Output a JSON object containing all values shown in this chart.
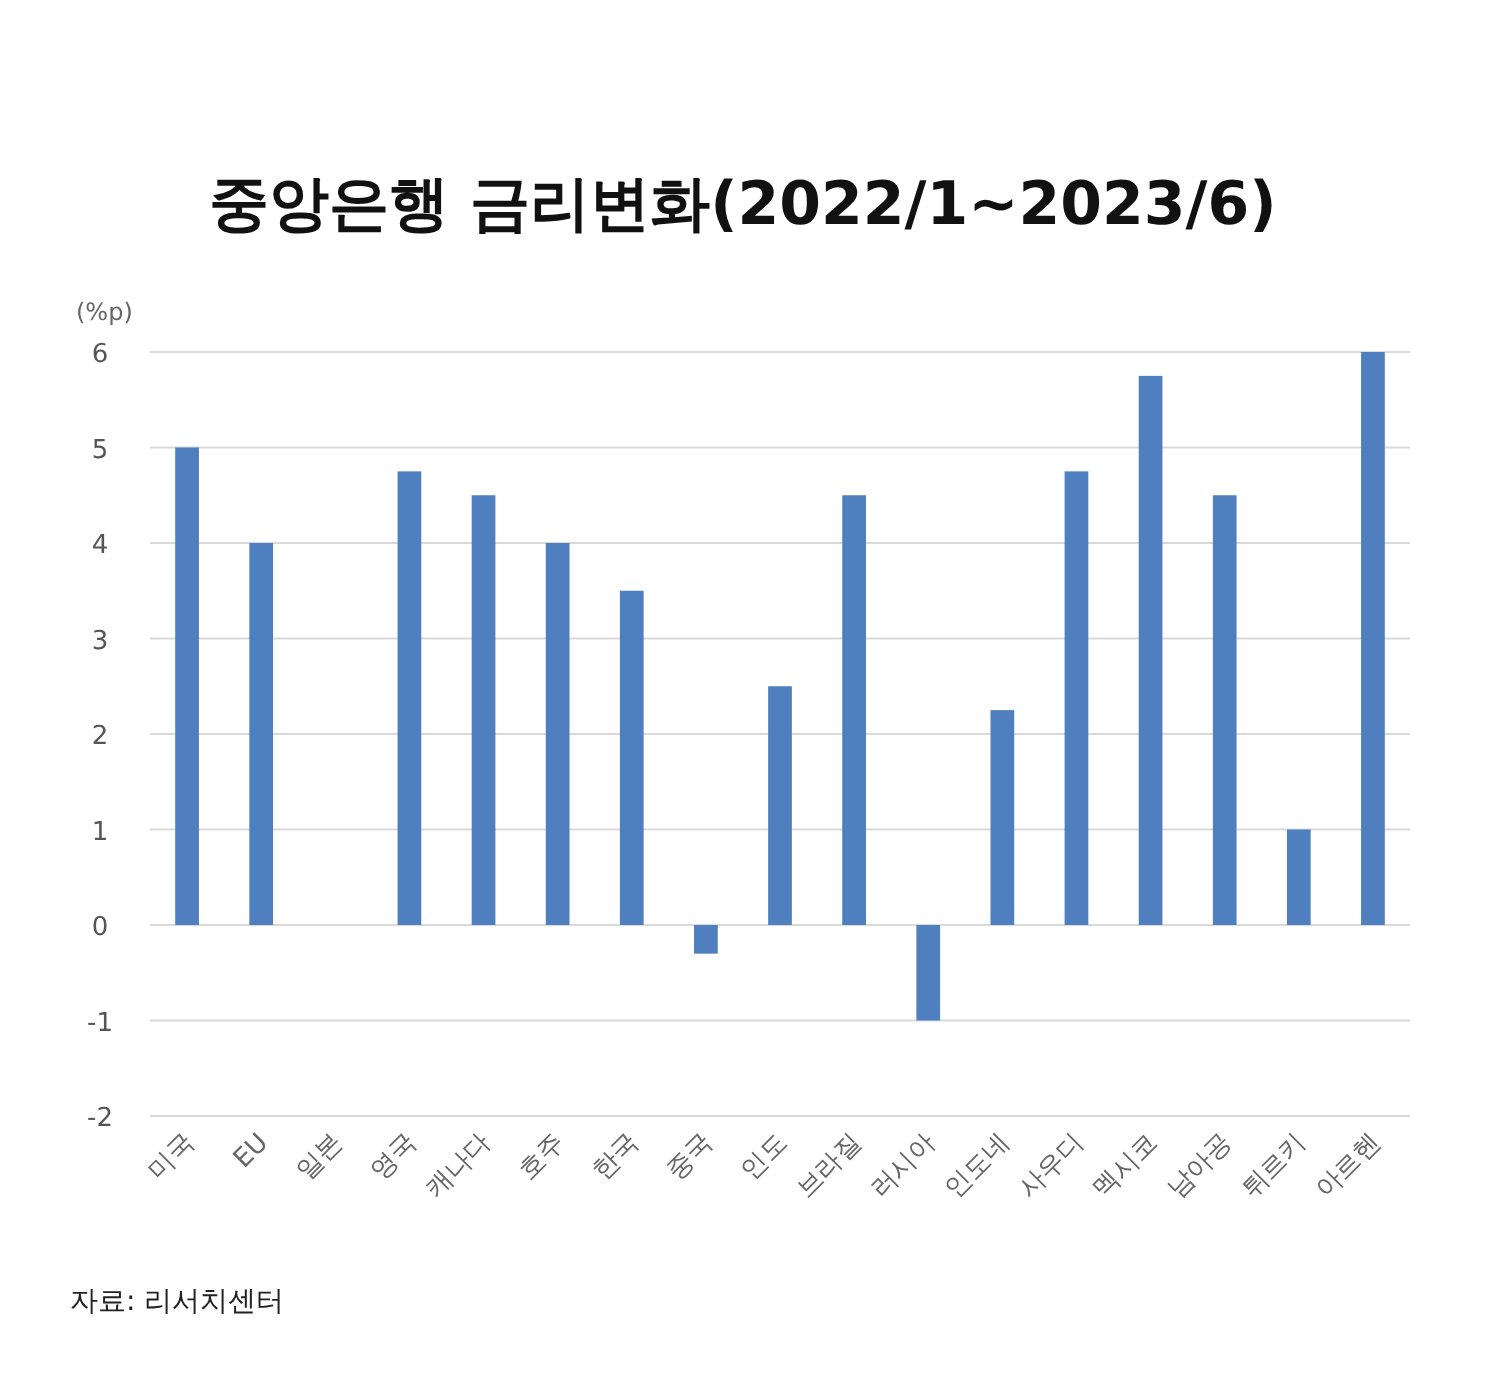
{
  "chart_data": {
    "type": "bar",
    "title": "중앙은행 금리변화(2022/1~2023/6)",
    "ylabel": "(%p)",
    "categories": [
      "미국",
      "EU",
      "일본",
      "영국",
      "캐나다",
      "호주",
      "한국",
      "중국",
      "인도",
      "브라질",
      "러시아",
      "인도네",
      "사우디",
      "멕시코",
      "남아공",
      "튀르키",
      "아르헨"
    ],
    "values": [
      5,
      4,
      0,
      4.75,
      4.5,
      4,
      3.5,
      -0.3,
      2.5,
      4.5,
      -1,
      2.25,
      4.75,
      5.75,
      4.5,
      1,
      6
    ],
    "color": "#4f7fbe",
    "ylim": [
      -2,
      6
    ],
    "yticks": [
      -2,
      -1,
      0,
      1,
      2,
      3,
      4,
      5,
      6
    ],
    "grid": "y",
    "annotations": [
      "자료: 리서치센터"
    ]
  }
}
